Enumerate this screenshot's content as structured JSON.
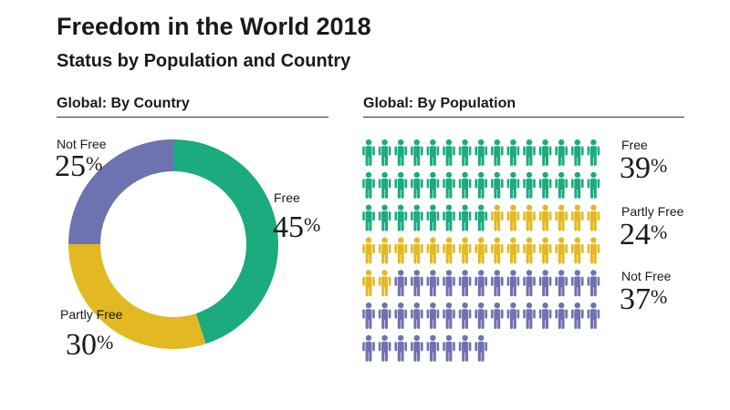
{
  "header": {
    "title": "Freedom in the World 2018",
    "subtitle": "Status by Population and Country"
  },
  "colors": {
    "free": "#1bab7e",
    "partly_free": "#e3b923",
    "not_free": "#6e72b0",
    "rule": "#333333"
  },
  "icons": {
    "person": "person-icon"
  },
  "chart_data": [
    {
      "type": "pie",
      "title": "Global: By Country",
      "donut": true,
      "series": [
        {
          "name": "Free",
          "value": 45,
          "label": "45",
          "color": "#1bab7e"
        },
        {
          "name": "Partly Free",
          "value": 30,
          "label": "30",
          "color": "#e3b923"
        },
        {
          "name": "Not Free",
          "value": 25,
          "label": "25",
          "color": "#6e72b0"
        }
      ],
      "unit": "%"
    },
    {
      "type": "pictograph",
      "title": "Global: By Population",
      "icon": "person-icon",
      "icon_count": 98,
      "series": [
        {
          "name": "Free",
          "value": 39,
          "label": "39",
          "icons": 38,
          "color": "#1bab7e"
        },
        {
          "name": "Partly Free",
          "value": 24,
          "label": "24",
          "icons": 24,
          "color": "#e3b923"
        },
        {
          "name": "Not Free",
          "value": 37,
          "label": "37",
          "icons": 36,
          "color": "#6e72b0"
        }
      ],
      "unit": "%"
    }
  ]
}
